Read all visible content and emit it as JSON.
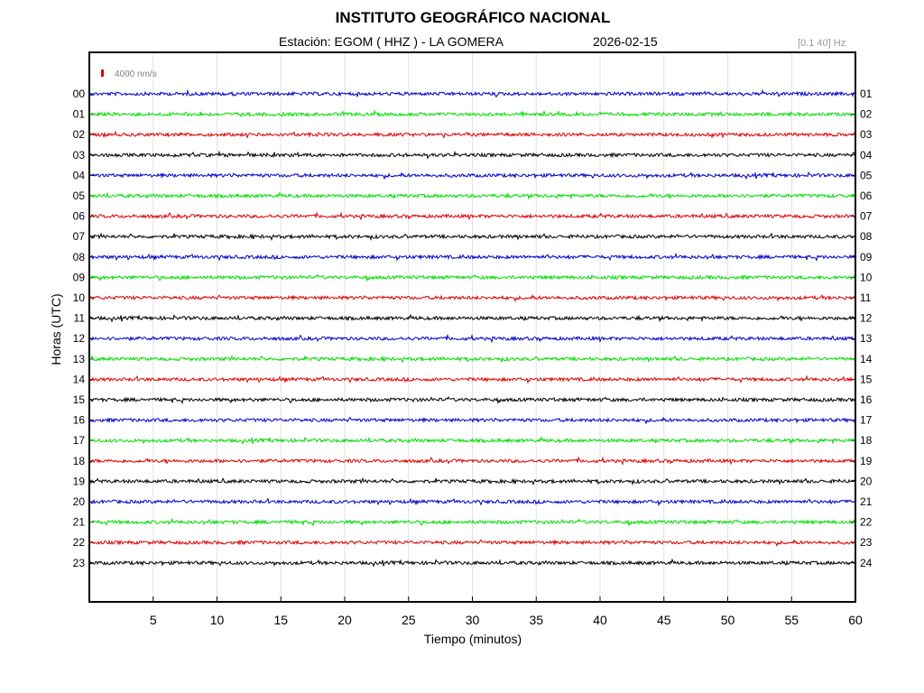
{
  "header": {
    "title": "INSTITUTO GEOGRÁFICO NACIONAL",
    "station": "Estación:  EGOM ( HHZ ) - LA GOMERA",
    "date": "2026-02-15",
    "filter": "[0.1 40] Hz"
  },
  "chart_data": {
    "type": "line",
    "title": "INSTITUTO GEOGRÁFICO NACIONAL",
    "xlabel": "Tiempo (minutos)",
    "ylabel": "Horas (UTC)",
    "xlim": [
      0,
      60
    ],
    "x_ticks": [
      5,
      10,
      15,
      20,
      25,
      30,
      35,
      40,
      45,
      50,
      55,
      60
    ],
    "left_hour_labels": [
      "00",
      "01",
      "02",
      "03",
      "04",
      "05",
      "06",
      "07",
      "08",
      "09",
      "10",
      "11",
      "12",
      "13",
      "14",
      "15",
      "16",
      "17",
      "18",
      "19",
      "20",
      "21",
      "22",
      "23"
    ],
    "right_hour_labels": [
      "01",
      "02",
      "03",
      "04",
      "05",
      "06",
      "07",
      "08",
      "09",
      "10",
      "11",
      "12",
      "13",
      "14",
      "15",
      "16",
      "17",
      "18",
      "19",
      "20",
      "21",
      "22",
      "23",
      "24"
    ],
    "trace_colors": [
      "#0000cc",
      "#00dd00",
      "#dd0000",
      "#000000"
    ],
    "scale_label": "4000 nm/s",
    "scale_color": "#dd0000",
    "grid": "vertical"
  }
}
